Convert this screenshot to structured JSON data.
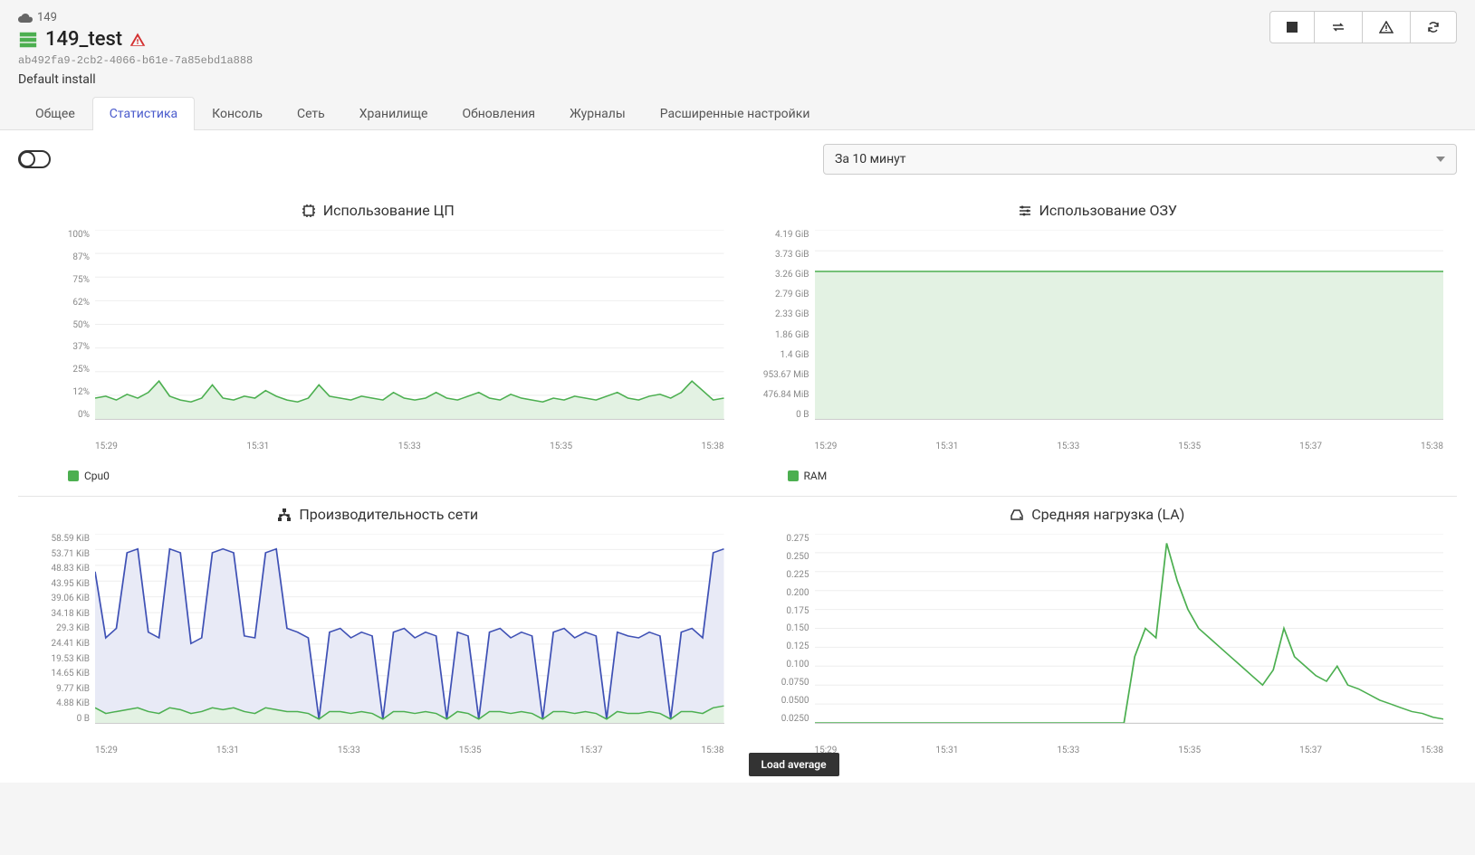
{
  "header": {
    "breadcrumb_id": "149",
    "title": "149_test",
    "uuid": "ab492fa9-2cb2-4066-b61e-7a85ebd1a888",
    "description": "Default install"
  },
  "tabs": {
    "items": [
      {
        "label": "Общее",
        "active": false
      },
      {
        "label": "Статистика",
        "active": true
      },
      {
        "label": "Консоль",
        "active": false
      },
      {
        "label": "Сеть",
        "active": false
      },
      {
        "label": "Хранилище",
        "active": false
      },
      {
        "label": "Обновления",
        "active": false
      },
      {
        "label": "Журналы",
        "active": false
      },
      {
        "label": "Расширенные настройки",
        "active": false
      }
    ]
  },
  "time_range": {
    "selected": "За 10 минут"
  },
  "colors": {
    "green_line": "#4caf50",
    "green_fill": "#e3f2e3",
    "blue_line": "#3f51b5",
    "blue_fill": "#e8eaf6",
    "grid": "#eeeeee",
    "axis_text": "#888888"
  },
  "cpu_chart": {
    "title": "Использование ЦП",
    "type": "area",
    "y_labels": [
      "100%",
      "87%",
      "75%",
      "62%",
      "50%",
      "37%",
      "25%",
      "12%",
      "0%"
    ],
    "x_labels": [
      "15:29",
      "15:31",
      "15:33",
      "15:35",
      "15:38"
    ],
    "legend": "Cpu0",
    "series": [
      {
        "color": "#4caf50",
        "fill": "#e3f2e3",
        "values": [
          11,
          12,
          10,
          13,
          11,
          14,
          20,
          12,
          10,
          9,
          11,
          18,
          11,
          10,
          12,
          11,
          15,
          12,
          10,
          9,
          11,
          18,
          12,
          11,
          10,
          12,
          11,
          10,
          14,
          11,
          10,
          11,
          14,
          11,
          10,
          12,
          14,
          11,
          10,
          13,
          11,
          10,
          9,
          11,
          10,
          12,
          11,
          10,
          12,
          14,
          11,
          10,
          12,
          13,
          11,
          14,
          20,
          15,
          10,
          11
        ]
      }
    ]
  },
  "ram_chart": {
    "title": "Использование ОЗУ",
    "type": "area",
    "y_labels": [
      "4.19 GiB",
      "3.73 GiB",
      "3.26 GiB",
      "2.79 GiB",
      "2.33 GiB",
      "1.86 GiB",
      "1.4 GiB",
      "953.67 MiB",
      "476.84 MiB",
      "0 B"
    ],
    "x_labels": [
      "15:29",
      "15:31",
      "15:33",
      "15:35",
      "15:37",
      "15:38"
    ],
    "legend": "RAM",
    "series": [
      {
        "color": "#4caf50",
        "fill": "#e3f2e3",
        "values": [
          78,
          78,
          78,
          78,
          78,
          78,
          78,
          78,
          78,
          78,
          78,
          78,
          78,
          78,
          78,
          78,
          78,
          78,
          78,
          78,
          78,
          78,
          78,
          78,
          78,
          78,
          78,
          78,
          78,
          78,
          78,
          78,
          78,
          78,
          78,
          78,
          78,
          78,
          78,
          78,
          78,
          78,
          78,
          78,
          78,
          78,
          78,
          78,
          78,
          78,
          78,
          78,
          78,
          78,
          78,
          78,
          78,
          78,
          78,
          78
        ]
      }
    ]
  },
  "network_chart": {
    "title": "Производительность сети",
    "type": "area",
    "y_labels": [
      "58.59 KiB",
      "53.71 KiB",
      "48.83 KiB",
      "43.95 KiB",
      "39.06 KiB",
      "34.18 KiB",
      "29.3 KiB",
      "24.41 KiB",
      "19.53 KiB",
      "14.65 KiB",
      "9.77 KiB",
      "4.88 KiB",
      "0 B"
    ],
    "x_labels": [
      "15:29",
      "15:31",
      "15:33",
      "15:35",
      "15:37",
      "15:38"
    ],
    "series": [
      {
        "color": "#3f51b5",
        "fill": "#e8eaf6",
        "values": [
          80,
          45,
          50,
          90,
          92,
          48,
          45,
          92,
          90,
          42,
          45,
          90,
          92,
          90,
          46,
          45,
          90,
          92,
          50,
          48,
          45,
          2,
          48,
          50,
          45,
          48,
          46,
          2,
          48,
          50,
          45,
          48,
          46,
          2,
          48,
          46,
          2,
          48,
          50,
          45,
          48,
          46,
          2,
          48,
          50,
          45,
          48,
          46,
          2,
          48,
          46,
          45,
          48,
          46,
          2,
          48,
          50,
          45,
          90,
          92
        ]
      },
      {
        "color": "#4caf50",
        "fill": "#e3f2e3",
        "values": [
          8,
          5,
          6,
          7,
          8,
          6,
          5,
          8,
          7,
          5,
          6,
          8,
          7,
          8,
          6,
          5,
          8,
          7,
          6,
          6,
          5,
          2,
          6,
          6,
          5,
          6,
          5,
          2,
          6,
          6,
          5,
          6,
          5,
          2,
          6,
          5,
          2,
          6,
          6,
          5,
          6,
          5,
          2,
          6,
          6,
          5,
          6,
          5,
          2,
          6,
          5,
          5,
          6,
          5,
          2,
          6,
          6,
          5,
          8,
          9
        ]
      }
    ]
  },
  "la_chart": {
    "title": "Средняя нагрузка (LA)",
    "type": "line",
    "y_labels": [
      "0.275",
      "0.250",
      "0.225",
      "0.200",
      "0.175",
      "0.150",
      "0.125",
      "0.100",
      "0.0750",
      "0.0500",
      "0.0250"
    ],
    "x_labels": [
      "15:29",
      "15:31",
      "15:33",
      "15:35",
      "15:37",
      "15:38"
    ],
    "tooltip": "Load average",
    "series": [
      {
        "color": "#4caf50",
        "fill": "none",
        "values": [
          0,
          0,
          0,
          0,
          0,
          0,
          0,
          0,
          0,
          0,
          0,
          0,
          0,
          0,
          0,
          0,
          0,
          0,
          0,
          0,
          0,
          0,
          0,
          0,
          0,
          0,
          0,
          0,
          0,
          0,
          35,
          50,
          45,
          95,
          75,
          60,
          50,
          45,
          40,
          35,
          30,
          25,
          20,
          28,
          50,
          35,
          30,
          25,
          22,
          30,
          20,
          18,
          15,
          12,
          10,
          8,
          6,
          5,
          3,
          2
        ]
      }
    ]
  }
}
